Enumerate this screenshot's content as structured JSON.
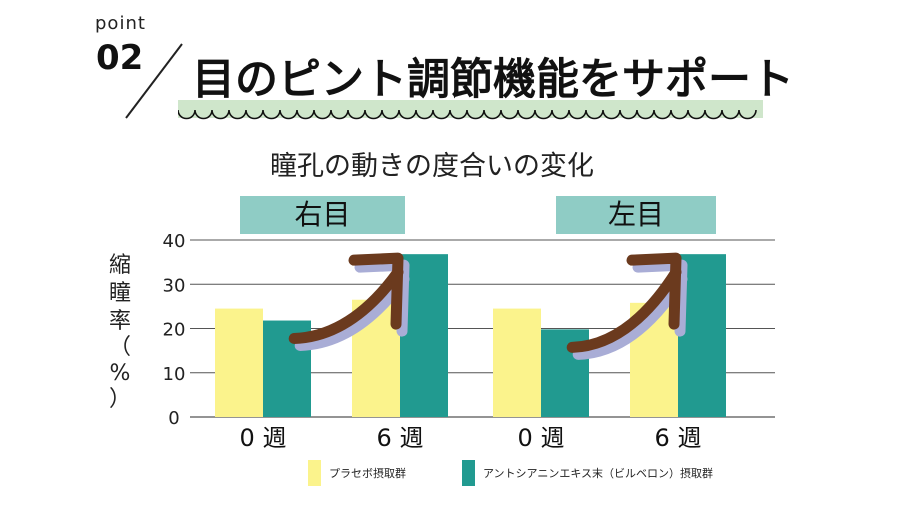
{
  "header": {
    "point_label": "point",
    "point_number": "02",
    "title": "目のピント調節機能をサポート"
  },
  "colors": {
    "placebo": "#fbf38c",
    "treatment": "#219a90",
    "header_box": "#8fccc5",
    "band": "#cfe6cb",
    "arrow": "#6b3a1e",
    "arrow_shadow": "#a9add6",
    "grid": "#555555"
  },
  "chart_data": {
    "type": "bar",
    "title": "瞳孔の動きの度合いの変化",
    "ylabel_chars": [
      "縮",
      "瞳",
      "率"
    ],
    "ylabel_paren_open": "（",
    "ylabel_unit": "%",
    "ylabel_paren_close": "）",
    "ylim": [
      0,
      40
    ],
    "yticks": [
      0,
      10,
      20,
      30,
      40
    ],
    "grid": true,
    "legend_position": "bottom",
    "groups": [
      {
        "name": "右目",
        "categories": [
          "0 週",
          "6 週"
        ],
        "series": [
          {
            "name": "プラセボ摂取群",
            "values": [
              24.5,
              26.5
            ]
          },
          {
            "name": "アントシアニンエキス末（ビルベロン）摂取群",
            "values": [
              21.8,
              36.8
            ]
          }
        ]
      },
      {
        "name": "左目",
        "categories": [
          "0 週",
          "6 週"
        ],
        "series": [
          {
            "name": "プラセボ摂取群",
            "values": [
              24.5,
              25.8
            ]
          },
          {
            "name": "アントシアニンエキス末（ビルベロン）摂取群",
            "values": [
              19.8,
              36.8
            ]
          }
        ]
      }
    ],
    "legend": [
      {
        "label": "プラセボ摂取群",
        "color": "#fbf38c"
      },
      {
        "label": "アントシアニンエキス末（ビルベロン）摂取群",
        "color": "#219a90"
      }
    ]
  }
}
